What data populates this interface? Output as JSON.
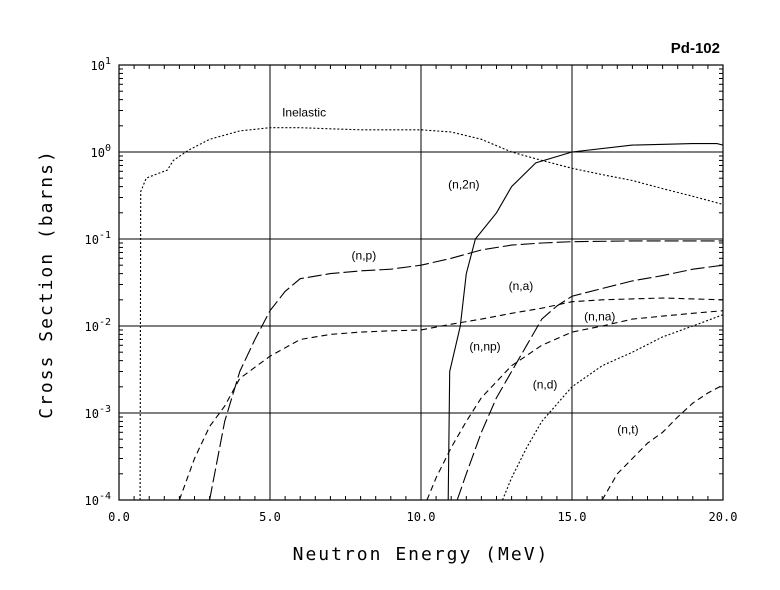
{
  "chart_data": {
    "type": "line",
    "title": "Pd-102",
    "xlabel": "Neutron Energy (MeV)",
    "ylabel": "Cross Section (barns)",
    "xlim": [
      0,
      20
    ],
    "ylim": [
      0.0001,
      10
    ],
    "yscale": "log",
    "grid": true,
    "x_ticks": [
      "0.0",
      "5.0",
      "10.0",
      "15.0",
      "20.0"
    ],
    "y_ticks": [
      {
        "base": "10",
        "exp": "1"
      },
      {
        "base": "10",
        "exp": "0"
      },
      {
        "base": "10",
        "exp": "-1"
      },
      {
        "base": "10",
        "exp": "-2"
      },
      {
        "base": "10",
        "exp": "-3"
      },
      {
        "base": "10",
        "exp": "-4"
      }
    ],
    "series": [
      {
        "name": "Inelastic",
        "dash": "dotted",
        "points": [
          [
            0.7,
            0.0001
          ],
          [
            0.72,
            0.35
          ],
          [
            0.9,
            0.5
          ],
          [
            1.2,
            0.55
          ],
          [
            1.6,
            0.62
          ],
          [
            1.8,
            0.8
          ],
          [
            2.3,
            1.05
          ],
          [
            3.0,
            1.4
          ],
          [
            4.0,
            1.75
          ],
          [
            5.0,
            1.9
          ],
          [
            6.0,
            1.9
          ],
          [
            7.0,
            1.85
          ],
          [
            8.0,
            1.8
          ],
          [
            10.0,
            1.8
          ],
          [
            11.0,
            1.7
          ],
          [
            12.0,
            1.4
          ],
          [
            13.0,
            1.0
          ],
          [
            14.0,
            0.8
          ],
          [
            15.0,
            0.65
          ],
          [
            16.0,
            0.55
          ],
          [
            17.0,
            0.47
          ],
          [
            18.0,
            0.38
          ],
          [
            19.0,
            0.31
          ],
          [
            20.0,
            0.25
          ]
        ]
      },
      {
        "name": "(n,2n)",
        "dash": "solid",
        "points": [
          [
            10.9,
            0.0001
          ],
          [
            10.95,
            0.003
          ],
          [
            11.1,
            0.005
          ],
          [
            11.3,
            0.01
          ],
          [
            11.5,
            0.04
          ],
          [
            11.8,
            0.1
          ],
          [
            12.5,
            0.2
          ],
          [
            13.0,
            0.4
          ],
          [
            13.8,
            0.75
          ],
          [
            15.0,
            1.0
          ],
          [
            17.0,
            1.2
          ],
          [
            19.0,
            1.25
          ],
          [
            19.8,
            1.25
          ],
          [
            20.0,
            1.2
          ]
        ]
      },
      {
        "name": "(n,p)",
        "dash": "long-dash",
        "points": [
          [
            3.0,
            0.0001
          ],
          [
            3.5,
            0.0008
          ],
          [
            4.0,
            0.003
          ],
          [
            4.5,
            0.007
          ],
          [
            5.0,
            0.015
          ],
          [
            5.5,
            0.025
          ],
          [
            6.0,
            0.035
          ],
          [
            7.0,
            0.04
          ],
          [
            8.0,
            0.043
          ],
          [
            9.0,
            0.045
          ],
          [
            10.0,
            0.05
          ],
          [
            11.0,
            0.06
          ],
          [
            12.0,
            0.075
          ],
          [
            13.0,
            0.085
          ],
          [
            14.0,
            0.09
          ],
          [
            15.0,
            0.093
          ],
          [
            17.0,
            0.095
          ],
          [
            20.0,
            0.095
          ]
        ]
      },
      {
        "name": "(n,a)",
        "dash": "dash",
        "points": [
          [
            2.0,
            0.0001
          ],
          [
            2.5,
            0.0003
          ],
          [
            3.0,
            0.0007
          ],
          [
            3.5,
            0.0012
          ],
          [
            4.0,
            0.0025
          ],
          [
            5.0,
            0.0045
          ],
          [
            6.0,
            0.007
          ],
          [
            7.0,
            0.008
          ],
          [
            8.0,
            0.0085
          ],
          [
            9.0,
            0.0088
          ],
          [
            10.0,
            0.009
          ],
          [
            11.0,
            0.0105
          ],
          [
            12.0,
            0.012
          ],
          [
            13.0,
            0.014
          ],
          [
            14.0,
            0.016
          ],
          [
            15.0,
            0.019
          ],
          [
            16.0,
            0.02
          ],
          [
            18.0,
            0.021
          ],
          [
            20.0,
            0.02
          ]
        ]
      },
      {
        "name": "(n,na)",
        "dash": "dash",
        "points": [
          [
            10.2,
            0.0001
          ],
          [
            10.5,
            0.00018
          ],
          [
            11.0,
            0.0004
          ],
          [
            11.5,
            0.0008
          ],
          [
            12.0,
            0.0015
          ],
          [
            13.0,
            0.0035
          ],
          [
            14.0,
            0.006
          ],
          [
            15.0,
            0.0085
          ],
          [
            16.0,
            0.01
          ],
          [
            17.0,
            0.012
          ],
          [
            18.0,
            0.013
          ],
          [
            19.0,
            0.014
          ],
          [
            20.0,
            0.015
          ]
        ]
      },
      {
        "name": "(n,np)",
        "dash": "long-dash",
        "points": [
          [
            11.2,
            0.0001
          ],
          [
            11.5,
            0.0002
          ],
          [
            12.0,
            0.0006
          ],
          [
            12.5,
            0.0015
          ],
          [
            13.0,
            0.003
          ],
          [
            13.5,
            0.006
          ],
          [
            14.0,
            0.012
          ],
          [
            14.5,
            0.017
          ],
          [
            15.0,
            0.022
          ],
          [
            16.0,
            0.027
          ],
          [
            17.0,
            0.033
          ],
          [
            18.0,
            0.038
          ],
          [
            19.0,
            0.045
          ],
          [
            20.0,
            0.05
          ]
        ]
      },
      {
        "name": "(n,d)",
        "dash": "dotted",
        "points": [
          [
            12.7,
            0.0001
          ],
          [
            13.0,
            0.00018
          ],
          [
            13.5,
            0.0004
          ],
          [
            14.0,
            0.0008
          ],
          [
            15.0,
            0.002
          ],
          [
            16.0,
            0.0035
          ],
          [
            17.0,
            0.005
          ],
          [
            18.0,
            0.0075
          ],
          [
            19.0,
            0.01
          ],
          [
            20.0,
            0.0135
          ]
        ]
      },
      {
        "name": "(n,t)",
        "dash": "dash",
        "points": [
          [
            16.0,
            0.0001
          ],
          [
            16.5,
            0.0002
          ],
          [
            17.0,
            0.0003
          ],
          [
            17.5,
            0.00045
          ],
          [
            18.0,
            0.0006
          ],
          [
            18.5,
            0.0009
          ],
          [
            19.0,
            0.0013
          ],
          [
            19.5,
            0.0017
          ],
          [
            20.0,
            0.0021
          ]
        ]
      }
    ],
    "annotations": [
      {
        "series": "Inelastic",
        "text": "Inelastic",
        "x": 5.4,
        "y": 2.55
      },
      {
        "series": "(n,2n)",
        "text": "(n,2n)",
        "x": 10.9,
        "y": 0.38
      },
      {
        "series": "(n,p)",
        "text": "(n,p)",
        "x": 7.7,
        "y": 0.058
      },
      {
        "series": "(n,a)",
        "text": "(n,a)",
        "x": 12.9,
        "y": 0.026
      },
      {
        "series": "(n,na)",
        "text": "(n,na)",
        "x": 15.4,
        "y": 0.0115
      },
      {
        "series": "(n,np)",
        "text": "(n,np)",
        "x": 11.6,
        "y": 0.0052
      },
      {
        "series": "(n,d)",
        "text": "(n,d)",
        "x": 13.7,
        "y": 0.0019
      },
      {
        "series": "(n,t)",
        "text": "(n,t)",
        "x": 16.5,
        "y": 0.00058
      }
    ]
  }
}
